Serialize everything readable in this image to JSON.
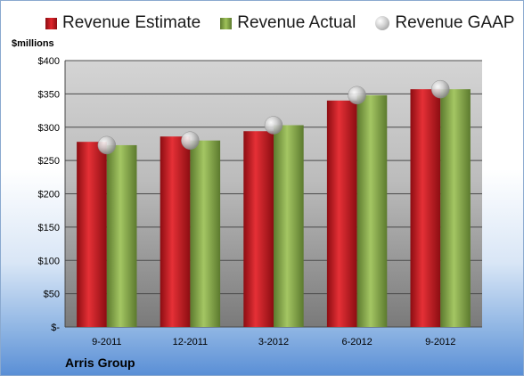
{
  "legend": {
    "estimate": "Revenue Estimate",
    "actual": "Revenue Actual",
    "gaap": "Revenue GAAP"
  },
  "unit_label": "$millions",
  "company": "Arris Group",
  "colors": {
    "estimate": "#d4202a",
    "actual": "#8db04d",
    "gaap": "#b8b8b8"
  },
  "chart_data": {
    "type": "bar",
    "categories": [
      "9-2011",
      "12-2011",
      "3-2012",
      "6-2012",
      "9-2012"
    ],
    "series": [
      {
        "name": "Revenue Estimate",
        "values": [
          278,
          286,
          294,
          340,
          357
        ]
      },
      {
        "name": "Revenue Actual",
        "values": [
          273,
          280,
          303,
          348,
          357
        ]
      },
      {
        "name": "Revenue GAAP",
        "values": [
          273,
          280,
          303,
          348,
          357
        ]
      }
    ],
    "ylim": [
      0,
      400
    ],
    "yticks": [
      0,
      50,
      100,
      150,
      200,
      250,
      300,
      350,
      400
    ],
    "ytick_labels": [
      "$-",
      "$50",
      "$100",
      "$150",
      "$200",
      "$250",
      "$300",
      "$350",
      "$400"
    ],
    "grid": true,
    "legend_position": "top"
  }
}
